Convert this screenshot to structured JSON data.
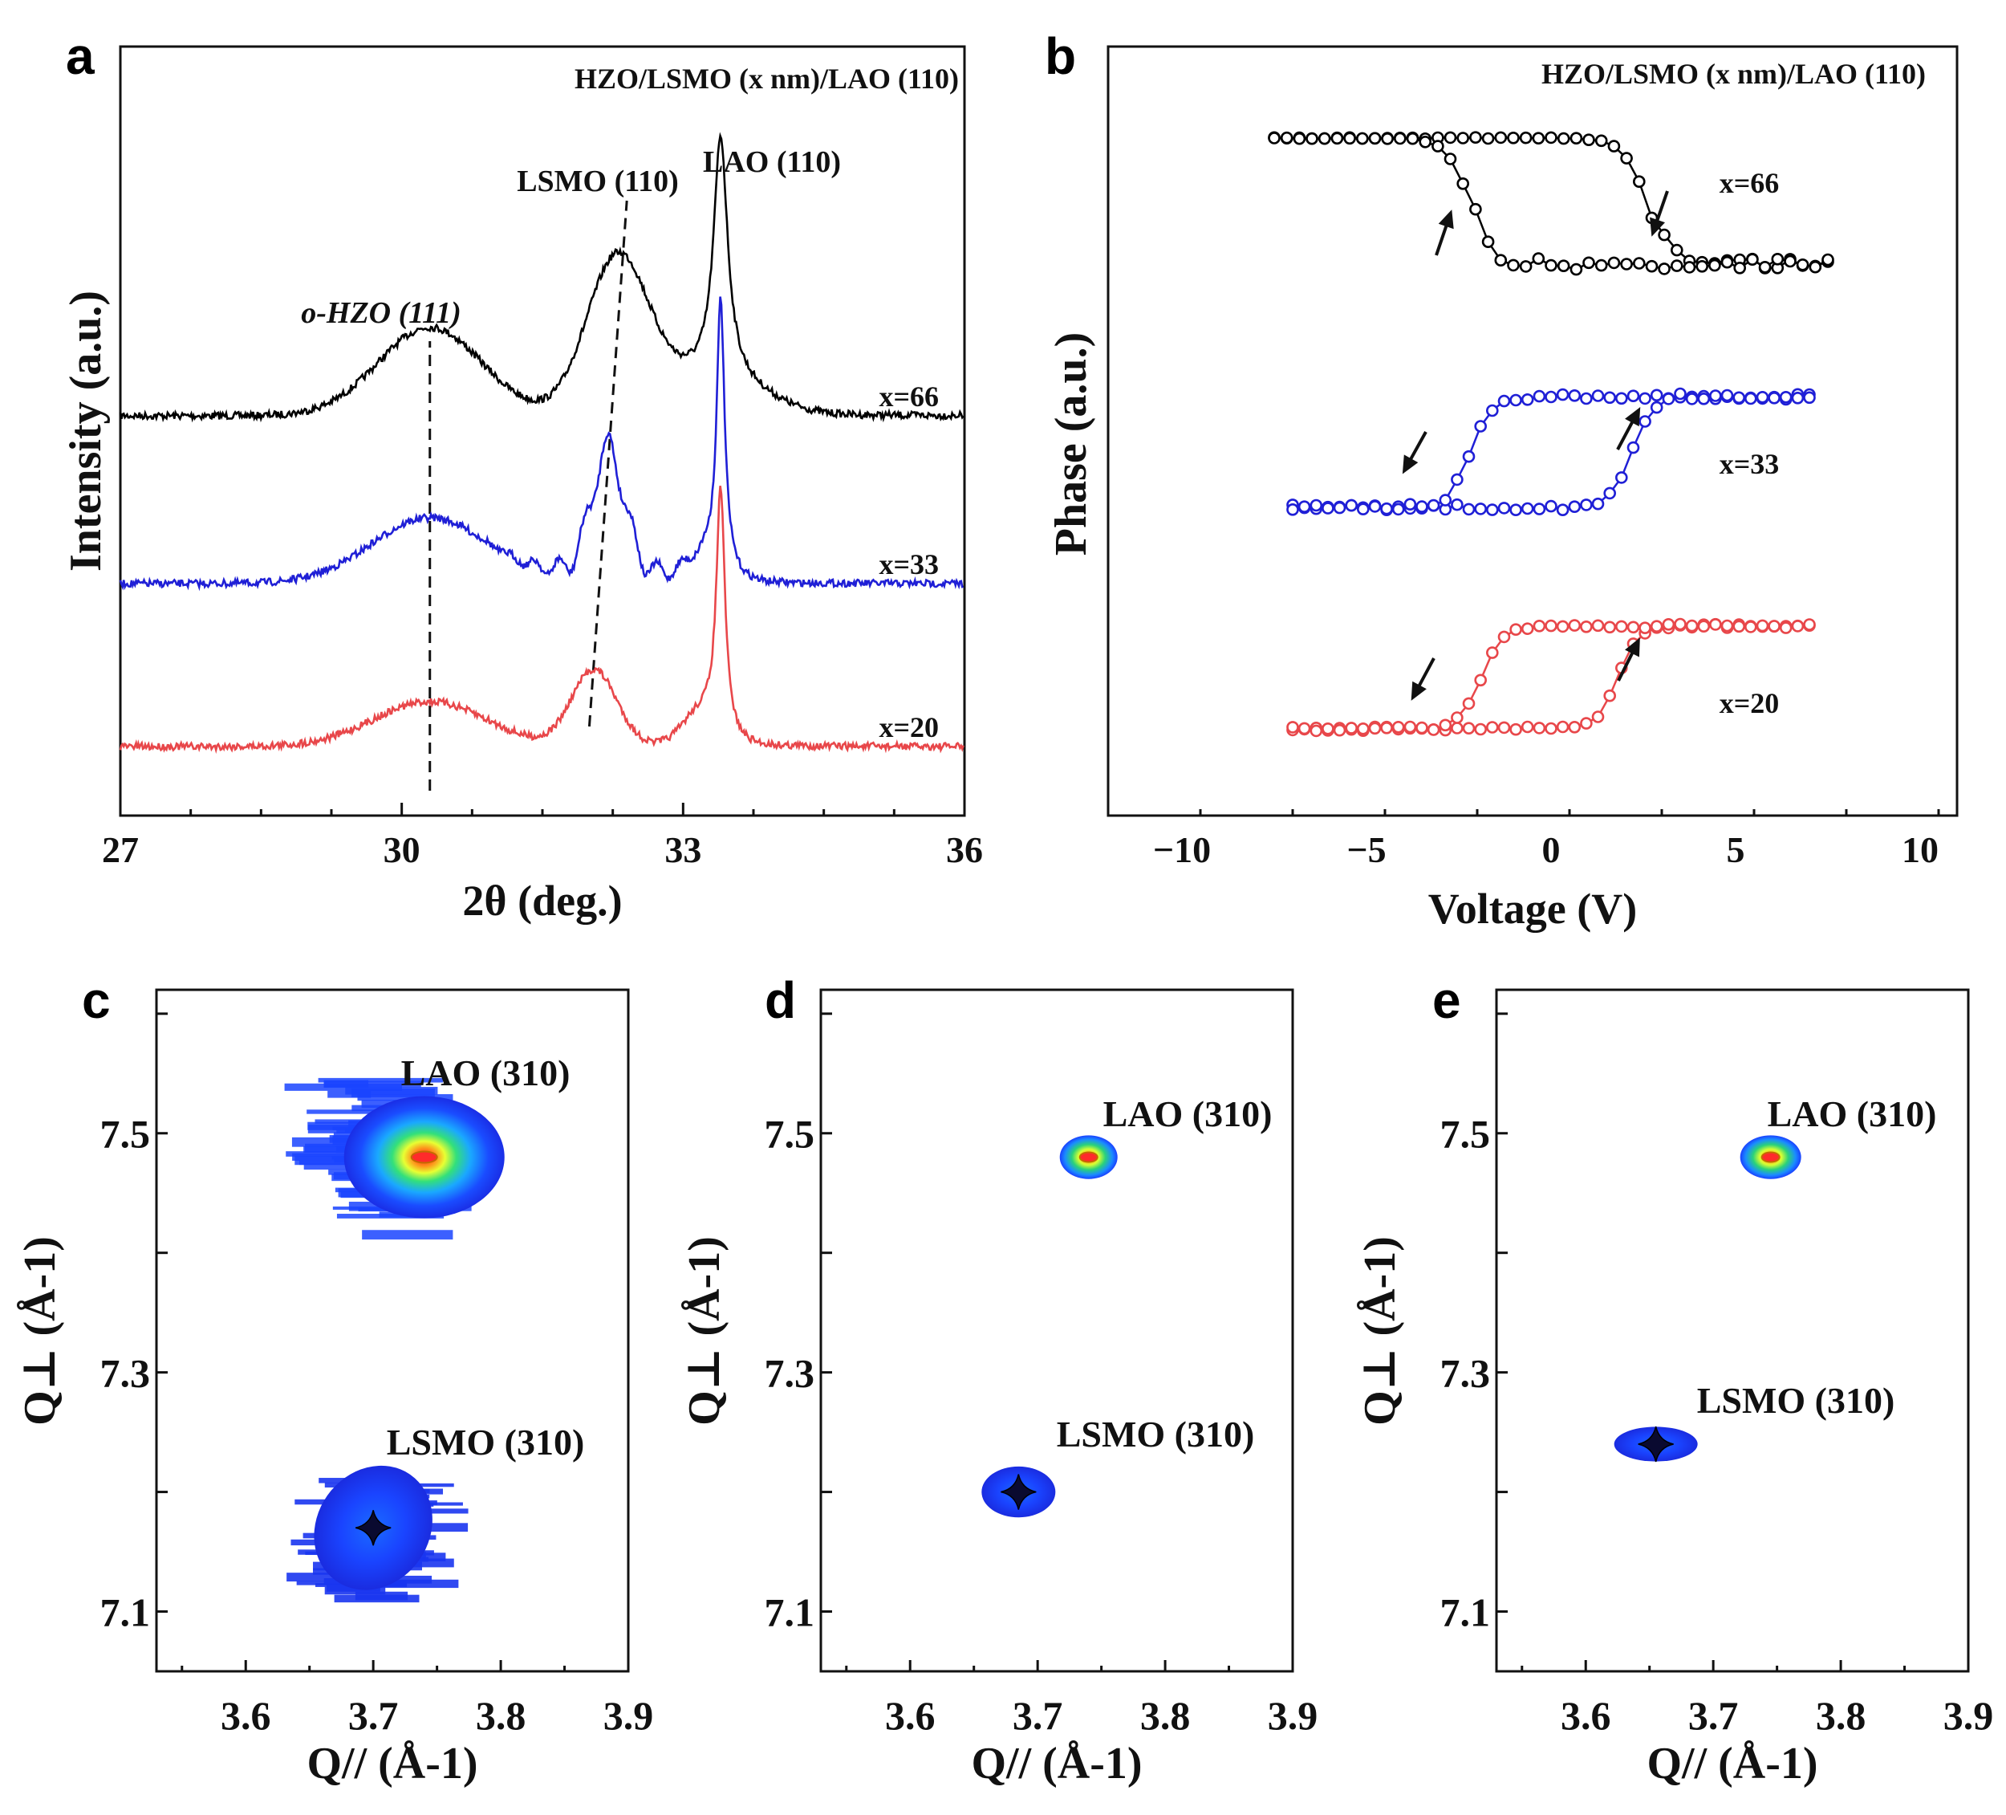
{
  "panel_letters": [
    "a",
    "b",
    "c",
    "d",
    "e"
  ],
  "chart_data": [
    {
      "panel": "a",
      "type": "line",
      "title": "HZO/LSMO (x nm)/LAO (110)",
      "xlabel": "2θ (deg.)",
      "ylabel": "Intensity (a.u.)",
      "xlim": [
        27,
        36
      ],
      "xticks": [
        "27",
        "30",
        "33",
        "36"
      ],
      "annotations": [
        "o-HZO (111)",
        "LSMO (110)",
        "LAO (110)"
      ],
      "peaks": {
        "o-HZO (111)": 30.3,
        "LAO (110)": 33.4
      },
      "series": [
        {
          "name": "x=66",
          "color": "#000000",
          "label_pos": "right"
        },
        {
          "name": "x=33",
          "color": "#1f1fd6",
          "label_pos": "right"
        },
        {
          "name": "x=20",
          "color": "#e8474a",
          "label_pos": "right"
        }
      ],
      "peak_positions": {
        "x=66": {
          "o-HZO": 30.3,
          "LSMO": 32.3,
          "LAO": 33.4
        },
        "x=33": {
          "o-HZO": 30.3,
          "LSMO": 32.2,
          "LAO": 33.4
        },
        "x=20": {
          "o-HZO": 30.3,
          "LSMO": 32.05,
          "LAO": 33.4
        }
      },
      "guide_lines": [
        {
          "from": [
            30.3,
            "bottom"
          ],
          "to": [
            30.3,
            "x=66"
          ]
        },
        {
          "from": [
            32.0,
            "bottom"
          ],
          "to": [
            32.4,
            "x=66"
          ]
        }
      ]
    },
    {
      "panel": "b",
      "type": "line",
      "title": "HZO/LSMO (x nm)/LAO (110)",
      "xlabel": "Voltage (V)",
      "ylabel": "Phase (a.u.)",
      "xlim": [
        -12,
        11
      ],
      "xticks": [
        "-10",
        "-5",
        "0",
        "5",
        "10"
      ],
      "series": [
        {
          "name": "x=66",
          "color": "#000000",
          "sweep_range": [
            -7.5,
            7.5
          ],
          "switch_down": 2.5,
          "switch_up": -2.5
        },
        {
          "name": "x=33",
          "color": "#1f1fd6",
          "sweep_range": [
            -7,
            7
          ],
          "switch_up": -2.5,
          "switch_down": 2.5
        },
        {
          "name": "x=20",
          "color": "#e8474a",
          "sweep_range": [
            -7,
            7
          ],
          "switch_up": -2,
          "switch_down": 2
        }
      ]
    },
    {
      "panel": "c",
      "type": "heatmap",
      "xlabel": "Q// (Å-1)",
      "ylabel": "Q⊥ (Å-1)",
      "xlim": [
        3.53,
        3.9
      ],
      "ylim": [
        7.05,
        7.62
      ],
      "xticks": [
        "3.6",
        "3.7",
        "3.8",
        "3.9"
      ],
      "yticks": [
        "7.1",
        "7.3",
        "7.5"
      ],
      "peaks": [
        {
          "label": "LAO (310)",
          "qx": 3.74,
          "qz": 7.48
        },
        {
          "label": "LSMO (310)",
          "qx": 3.7,
          "qz": 7.17
        }
      ]
    },
    {
      "panel": "d",
      "type": "heatmap",
      "xlabel": "Q// (Å-1)",
      "ylabel": "Q⊥ (Å-1)",
      "xlim": [
        3.53,
        3.9
      ],
      "ylim": [
        7.05,
        7.62
      ],
      "xticks": [
        "3.6",
        "3.7",
        "3.8",
        "3.9"
      ],
      "yticks": [
        "7.1",
        "7.3",
        "7.5"
      ],
      "peaks": [
        {
          "label": "LAO (310)",
          "qx": 3.74,
          "qz": 7.48
        },
        {
          "label": "LSMO (310)",
          "qx": 3.685,
          "qz": 7.2
        }
      ]
    },
    {
      "panel": "e",
      "type": "heatmap",
      "xlabel": "Q// (Å-1)",
      "ylabel": "Q⊥ (Å-1)",
      "xlim": [
        3.53,
        3.9
      ],
      "ylim": [
        7.05,
        7.62
      ],
      "xticks": [
        "3.6",
        "3.7",
        "3.8",
        "3.9"
      ],
      "yticks": [
        "7.1",
        "7.3",
        "7.5"
      ],
      "peaks": [
        {
          "label": "LAO (310)",
          "qx": 3.745,
          "qz": 7.48
        },
        {
          "label": "LSMO (310)",
          "qx": 3.655,
          "qz": 7.24
        }
      ]
    }
  ]
}
